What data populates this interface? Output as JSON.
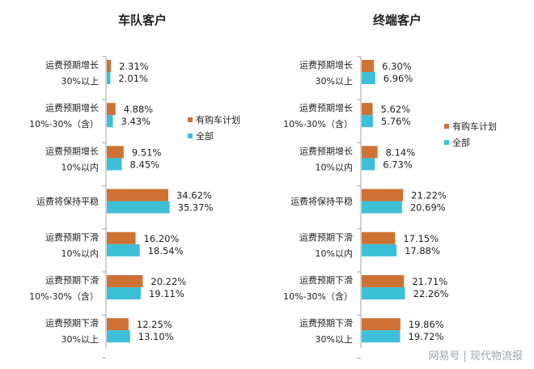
{
  "colors": {
    "plan": "#CD7234",
    "all": "#3DBFD8",
    "axis": "#A6A6A6"
  },
  "watermark": "网易号 | 现代物流报",
  "chart_data": [
    {
      "type": "bar",
      "orientation": "horizontal",
      "title": "车队客户",
      "categories": [
        [
          "运费预期增长",
          "30%以上"
        ],
        [
          "运费预期增长",
          "10%-30%（含）"
        ],
        [
          "运费预期增长",
          "10%以内"
        ],
        [
          "运费将保持平稳"
        ],
        [
          "运费预期下滑",
          "10%以内"
        ],
        [
          "运费预期下滑",
          "10%-30%（含）"
        ],
        [
          "运费预期下滑",
          "30%以上"
        ]
      ],
      "series": [
        {
          "name": "有购车计划",
          "values": [
            2.31,
            4.88,
            9.51,
            34.62,
            16.2,
            20.22,
            12.25
          ],
          "labels": [
            "2.31%",
            "4.88%",
            "9.51%",
            "34.62%",
            "16.20%",
            "20.22%",
            "12.25%"
          ]
        },
        {
          "name": "全部",
          "values": [
            2.01,
            3.43,
            8.45,
            35.37,
            18.54,
            19.11,
            13.1
          ],
          "labels": [
            "2.01%",
            "3.43%",
            "8.45%",
            "35.37%",
            "18.54%",
            "19.11%",
            "13.10%"
          ]
        }
      ],
      "unit": "%",
      "xlim": [
        0,
        40
      ],
      "grid": false,
      "legend": "right"
    },
    {
      "type": "bar",
      "orientation": "horizontal",
      "title": "终端客户",
      "categories": [
        [
          "运费预期增长",
          "30%以上"
        ],
        [
          "运费预期增长",
          "10%-30%（含）"
        ],
        [
          "运费预期增长",
          "10%以内"
        ],
        [
          "运费将保持平稳"
        ],
        [
          "运费预期下滑",
          "10%以内"
        ],
        [
          "运费预期下滑",
          "10%-30%（含）"
        ],
        [
          "运费预期下滑",
          "30%以上"
        ]
      ],
      "series": [
        {
          "name": "有购车计划",
          "values": [
            6.3,
            5.62,
            8.14,
            21.22,
            17.15,
            21.71,
            19.86
          ],
          "labels": [
            "6.30%",
            "5.62%",
            "8.14%",
            "21.22%",
            "17.15%",
            "21.71%",
            "19.86%"
          ]
        },
        {
          "name": "全部",
          "values": [
            6.96,
            5.76,
            6.73,
            20.69,
            17.88,
            22.26,
            19.72
          ],
          "labels": [
            "6.96%",
            "5.76%",
            "6.73%",
            "20.69%",
            "17.88%",
            "22.26%",
            "19.72%"
          ]
        }
      ],
      "unit": "%",
      "xlim": [
        0,
        25
      ],
      "grid": false,
      "legend": "right"
    }
  ]
}
